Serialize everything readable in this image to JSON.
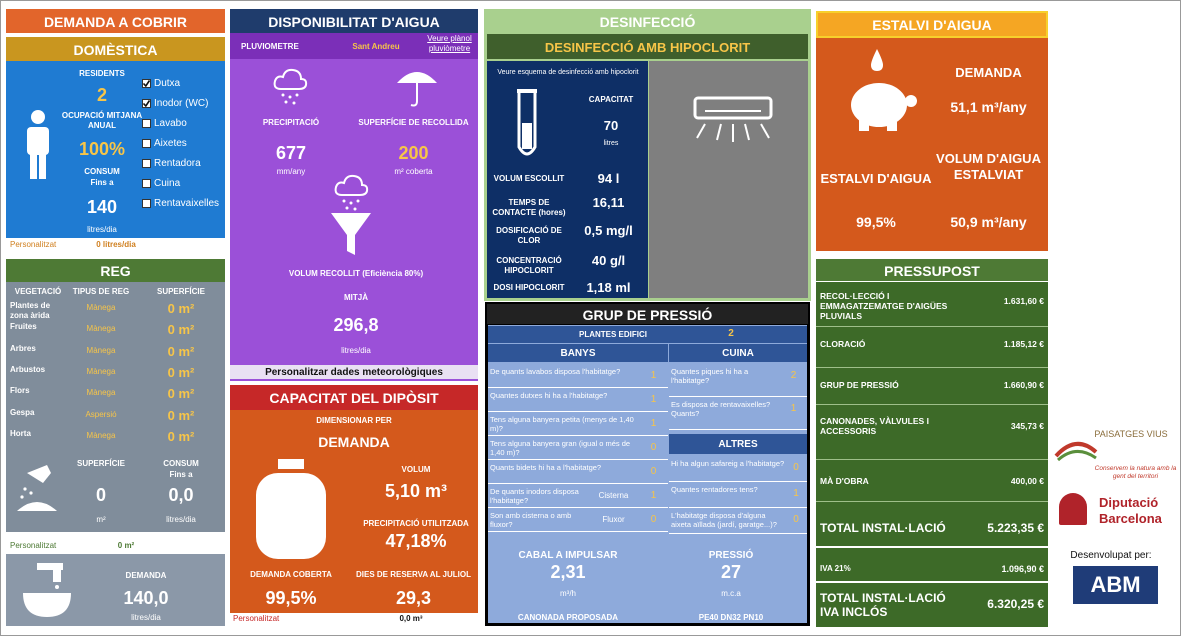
{
  "demanda": {
    "title": "DEMANDA A COBRIR"
  },
  "domestica": {
    "title": "DOMÈSTICA",
    "residents_label": "RESIDENTS",
    "residents": "2",
    "ocupacio_label": "OCUPACIÓ MITJANA ANUAL",
    "ocupacio": "100%",
    "consum_label": "CONSUM",
    "consum_sub": "Fins a",
    "consum": "140",
    "consum_unit": "litres/dia",
    "options": [
      "Dutxa",
      "Inodor (WC)",
      "Lavabo",
      "Aixetes",
      "Rentadora",
      "Cuina",
      "Rentavaixelles"
    ],
    "checked": [
      true,
      true,
      false,
      false,
      false,
      false,
      false
    ],
    "personalitzat": "Personalitzat",
    "personalitzat_value": "0 litres/dia"
  },
  "reg": {
    "title": "REG",
    "headers": [
      "VEGETACIÓ",
      "TIPUS DE REG",
      "SUPERFÍCIE"
    ],
    "rows": [
      [
        "Plantes de zona àrida",
        "Mànega",
        "0 m²"
      ],
      [
        "Fruites",
        "Mànega",
        "0 m²"
      ],
      [
        "Arbres",
        "Mànega",
        "0 m²"
      ],
      [
        "Arbustos",
        "Mànega",
        "0 m²"
      ],
      [
        "Flors",
        "Mànega",
        "0 m²"
      ],
      [
        "Gespa",
        "Aspersió",
        "0 m²"
      ],
      [
        "Horta",
        "Mànega",
        "0 m²"
      ]
    ],
    "superficie_label": "SUPERFÍCIE",
    "superficie": "0",
    "superficie_unit": "m²",
    "consum_label": "CONSUM",
    "consum_sub": "Fins a",
    "consum": "0,0",
    "consum_unit": "litres/dia",
    "personalitzat": "Personalitzat",
    "personalitzat_value": "0 m²"
  },
  "total_demanda": {
    "label": "DEMANDA",
    "value": "140,0",
    "unit": "litres/dia"
  },
  "disponibilitat": {
    "title": "DISPONIBILITAT D'AIGUA",
    "pluviometre": "PLUVIOMETRE",
    "location": "Sant Andreu",
    "link": "Veure plànol pluviòmetre",
    "precip_label": "PRECIPITACIÓ",
    "precip": "677",
    "precip_unit": "mm/any",
    "sup_label": "SUPERFÍCIE DE RECOLLIDA",
    "sup": "200",
    "sup_unit": "m² coberta",
    "volum_label": "VOLUM RECOLLIT (Eficiència 80%)",
    "mitja": "MITJÀ",
    "volum": "296,8",
    "volum_unit": "litres/dia",
    "link2": "Personalitzar dades meteorològiques"
  },
  "capacitat": {
    "title": "CAPACITAT DEL DIPÒSIT",
    "dim_label": "DIMENSIONAR PER",
    "dim": "DEMANDA",
    "volum_label": "VOLUM",
    "volum": "5,10 m³",
    "precip_label": "PRECIPITACIÓ UTILITZADA",
    "precip": "47,18%",
    "demanda_label": "DEMANDA COBERTA",
    "demanda": "99,5%",
    "dies_label": "DIES DE RESERVA AL JULIOL",
    "dies": "29,3",
    "personalitzat": "Personalitzat",
    "personalitzat_value": "0,0 m³"
  },
  "desinfeccio": {
    "title": "DESINFECCIÓ",
    "subtitle": "DESINFECCIÓ AMB HIPOCLORIT",
    "link": "Veure esquema de desinfecció amb hipoclorit",
    "capacitat_label": "CAPACITAT",
    "capacitat": "70",
    "capacitat_unit": "litres",
    "rows": [
      [
        "VOLUM ESCOLLIT",
        "94 l"
      ],
      [
        "TEMPS DE CONTACTE (hores)",
        "16,11"
      ],
      [
        "DOSIFICACIÓ DE CLOR",
        "0,5 mg/l"
      ],
      [
        "CONCENTRACIÓ HIPOCLORIT",
        "40 g/l"
      ],
      [
        "DOSI HIPOCLORIT",
        "1,18 ml"
      ]
    ]
  },
  "grup": {
    "title": "GRUP DE PRESSIÓ",
    "plantes_label": "PLANTES EDIFICI",
    "plantes": "2",
    "banys_title": "BANYS",
    "banys": [
      [
        "De quants lavabos disposa l'habitatge?",
        "1"
      ],
      [
        "Quantes dutxes hi ha a l'habitatge?",
        "1"
      ],
      [
        "Tens alguna banyera petita (menys de 1,40 m)?",
        "1"
      ],
      [
        "Tens alguna banyera gran (igual o més de 1,40 m)?",
        "0"
      ],
      [
        "Quants bidets hi ha a l'habitatge?",
        "0"
      ],
      [
        "De quants inodors disposa l'habitatge?",
        "Cisterna",
        "1"
      ],
      [
        "Son amb cisterna o amb fluxor?",
        "Fluxor",
        "0"
      ]
    ],
    "cuina_title": "CUINA",
    "cuina": [
      [
        "Quantes piques hi ha a l'habitatge?",
        "2"
      ],
      [
        "Es disposa de rentavaixelles? Quants?",
        "1"
      ]
    ],
    "altres_title": "ALTRES",
    "altres": [
      [
        "Hi ha algun safareig a l'habitatge?",
        "0"
      ],
      [
        "Quantes rentadores tens?",
        "1"
      ],
      [
        "L'habitatge disposa d'alguna aixeta aïllada (jardí, garatge...)?",
        "0"
      ]
    ],
    "cabal_label": "CABAL A IMPULSAR",
    "cabal": "2,31",
    "cabal_unit": "m³/h",
    "pressio_label": "PRESSIÓ",
    "pressio": "27",
    "pressio_unit": "m.c.a",
    "canonada_label": "CANONADA PROPOSADA",
    "canonada": "PE40 DN32 PN10"
  },
  "estalvi": {
    "title": "ESTALVI D'AIGUA",
    "demanda_label": "DEMANDA",
    "demanda": "51,1 m³/any",
    "estalvi_label": "ESTALVI D'AIGUA",
    "estalvi": "99,5%",
    "volum_label": "VOLUM D'AIGUA ESTALVIAT",
    "volum": "50,9 m³/any"
  },
  "pressupost": {
    "title": "PRESSUPOST",
    "rows": [
      [
        "RECOL·LECCIÓ I EMMAGATZEMATGE D'AIGÜES PLUVIALS",
        "1.631,60 €"
      ],
      [
        "CLORACIÓ",
        "1.185,12 €"
      ],
      [
        "GRUP DE PRESSIÓ",
        "1.660,90 €"
      ],
      [
        "CANONADES, VÀLVULES I ACCESSORIS",
        "345,73 €"
      ],
      [
        "MÀ D'OBRA",
        "400,00 €"
      ]
    ],
    "totals": [
      [
        "TOTAL INSTAL·LACIÓ",
        "5.223,35 €"
      ],
      [
        "IVA 21%",
        "1.096,90 €"
      ],
      [
        "TOTAL INSTAL·LACIÓ IVA INCLÓS",
        "6.320,25 €"
      ]
    ]
  },
  "logos": {
    "paisatges": "PAISATGES VIUS",
    "paisatges_sub": "Conservem la natura amb la gent del territori",
    "diputacio": "Diputació Barcelona",
    "desenvolupat": "Desenvolupat per:",
    "abm": "ABM"
  }
}
